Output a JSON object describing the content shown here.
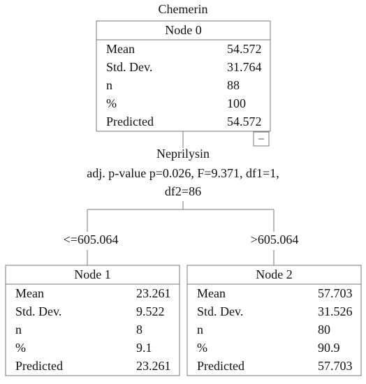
{
  "title": "Chemerin",
  "nodes": [
    {
      "label": "Node 0",
      "rows": [
        [
          "Mean",
          "54.572"
        ],
        [
          "Std. Dev.",
          "31.764"
        ],
        [
          "n",
          "88"
        ],
        [
          "%",
          "100"
        ],
        [
          "Predicted",
          "54.572"
        ]
      ]
    },
    {
      "label": "Node 1",
      "rows": [
        [
          "Mean",
          "23.261"
        ],
        [
          "Std. Dev.",
          "9.522"
        ],
        [
          "n",
          "8"
        ],
        [
          "%",
          "9.1"
        ],
        [
          "Predicted",
          "23.261"
        ]
      ]
    },
    {
      "label": "Node 2",
      "rows": [
        [
          "Mean",
          "57.703"
        ],
        [
          "Std. Dev.",
          "31.526"
        ],
        [
          "n",
          "80"
        ],
        [
          "%",
          "90.9"
        ],
        [
          "Predicted",
          "57.703"
        ]
      ]
    }
  ],
  "split": {
    "variable": "Neprilysin",
    "stats": [
      "adj. p-value p=0.026, F=9.371, df1=1,",
      "df2=86"
    ]
  },
  "branches": [
    "<=605.064",
    ">605.064"
  ]
}
